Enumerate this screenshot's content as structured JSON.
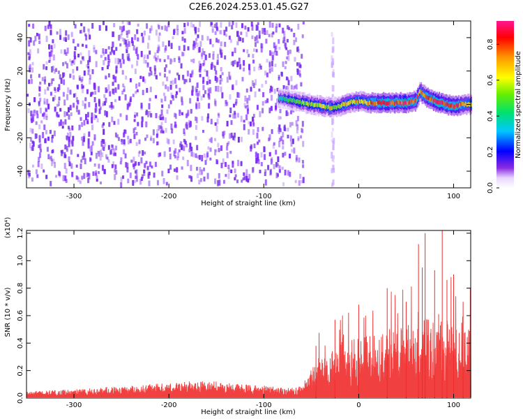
{
  "title": "C2E6.2024.253.01.45.G27",
  "colors": {
    "noise": "#7a2cf0",
    "snr_line": "#ef2b2b",
    "axis": "#000000"
  },
  "chart_data": [
    {
      "type": "heatmap",
      "xlabel": "Height of straight line (km)",
      "ylabel": "Frequency (Hz)",
      "xlim": [
        -350,
        118
      ],
      "ylim": [
        -50,
        50
      ],
      "x_ticks": [
        -300,
        -200,
        -100,
        0,
        100
      ],
      "x_tick_labels": [
        "-300",
        "-200",
        "-100",
        "0",
        "100"
      ],
      "y_ticks": [
        -40,
        -20,
        0,
        20,
        40
      ],
      "y_tick_labels": [
        "-40",
        "-20",
        "0",
        "20",
        "40"
      ],
      "noise_region": {
        "x_from": -350,
        "x_to": -57
      },
      "blank_gap": {
        "x_from": -57,
        "x_to": -30
      },
      "signal_band": {
        "x": [
          -85,
          -75,
          -60,
          -50,
          -40,
          -30,
          -20,
          -10,
          0,
          10,
          20,
          30,
          40,
          50,
          60,
          64,
          67,
          72,
          80,
          90,
          100,
          110,
          118
        ],
        "freq": [
          4,
          3,
          1,
          0,
          -1,
          -2,
          -1,
          1,
          2,
          1,
          1,
          1,
          1,
          1,
          2,
          8,
          6,
          4,
          2,
          0,
          -1,
          0,
          0
        ],
        "amplitude": [
          0.35,
          0.45,
          0.5,
          0.55,
          0.55,
          0.6,
          0.62,
          0.65,
          0.7,
          0.75,
          0.8,
          0.85,
          0.85,
          0.85,
          0.8,
          0.7,
          0.75,
          0.8,
          0.85,
          0.85,
          0.8,
          0.75,
          0.7
        ]
      },
      "colorbar": {
        "label": "Normalized spectral amplitude",
        "range": [
          0.0,
          0.93
        ],
        "ticks": [
          0.0,
          0.2,
          0.4,
          0.6,
          0.8
        ],
        "tick_labels": [
          "0.0",
          "0.2",
          "0.4",
          "0.6",
          "0.8"
        ]
      }
    },
    {
      "type": "line",
      "xlabel": "Height of straight line (km)",
      "ylabel": "SNR (10 * v/v)",
      "scale_label": "(x10⁴)",
      "xlim": [
        -350,
        118
      ],
      "ylim": [
        0.0,
        1.22
      ],
      "x_ticks": [
        -300,
        -200,
        -100,
        0,
        100
      ],
      "x_tick_labels": [
        "-300",
        "-200",
        "-100",
        "0",
        "100"
      ],
      "y_ticks": [
        0.0,
        0.2,
        0.4,
        0.6,
        0.8,
        1.0,
        1.2
      ],
      "y_tick_labels": [
        "0.0",
        "0.2",
        "0.4",
        "0.6",
        "0.8",
        "1.0",
        "1.2"
      ],
      "series": [
        {
          "x": [
            -350,
            -300,
            -250,
            -200,
            -170,
            -150,
            -120,
            -90,
            -70,
            -60,
            -55,
            -50,
            -45,
            -40,
            -30,
            -20,
            -10,
            0,
            10,
            20,
            30,
            40,
            50,
            60,
            70,
            80,
            90,
            100,
            110,
            118
          ],
          "y": [
            0.04,
            0.05,
            0.07,
            0.09,
            0.1,
            0.1,
            0.08,
            0.07,
            0.06,
            0.07,
            0.12,
            0.18,
            0.22,
            0.25,
            0.28,
            0.3,
            0.33,
            0.36,
            0.38,
            0.4,
            0.42,
            0.43,
            0.42,
            0.45,
            0.47,
            0.45,
            0.47,
            0.43,
            0.4,
            0.4
          ],
          "peak_x": [
            -45,
            -25,
            0,
            30,
            50,
            63,
            67,
            70,
            80,
            88,
            93,
            100,
            110
          ],
          "peak_y": [
            0.38,
            0.57,
            0.68,
            0.8,
            0.7,
            1.12,
            0.95,
            1.2,
            0.93,
            1.22,
            0.86,
            0.9,
            0.7
          ]
        }
      ]
    }
  ]
}
